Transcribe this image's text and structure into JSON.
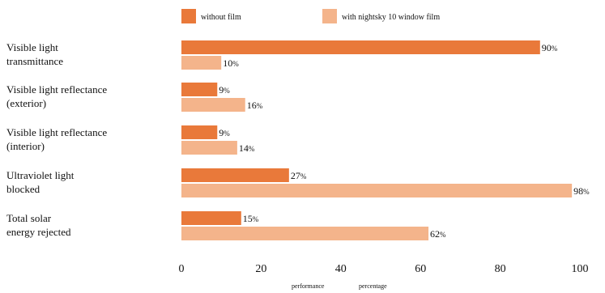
{
  "chart_data": {
    "type": "bar",
    "orientation": "horizontal",
    "categories": [
      [
        "Visible light",
        "transmittance"
      ],
      [
        "Visible light reflectance",
        "(exterior)"
      ],
      [
        "Visible light reflectance",
        "(interior)"
      ],
      [
        "Ultraviolet light",
        "blocked"
      ],
      [
        "Total solar",
        "energy rejected"
      ]
    ],
    "series": [
      {
        "name": "without film",
        "color": "#E9793A",
        "values": [
          90,
          9,
          9,
          27,
          15
        ]
      },
      {
        "name": "with nightsky 10 window film",
        "color": "#F4B48B",
        "values": [
          10,
          16,
          14,
          98,
          62
        ]
      }
    ],
    "value_suffix": "%",
    "xlim": [
      0,
      100
    ],
    "xticks": [
      0,
      20,
      40,
      60,
      80,
      100
    ],
    "xlabel_parts": [
      "performance",
      "percentage"
    ],
    "legend_position": "top",
    "grid": false
  }
}
